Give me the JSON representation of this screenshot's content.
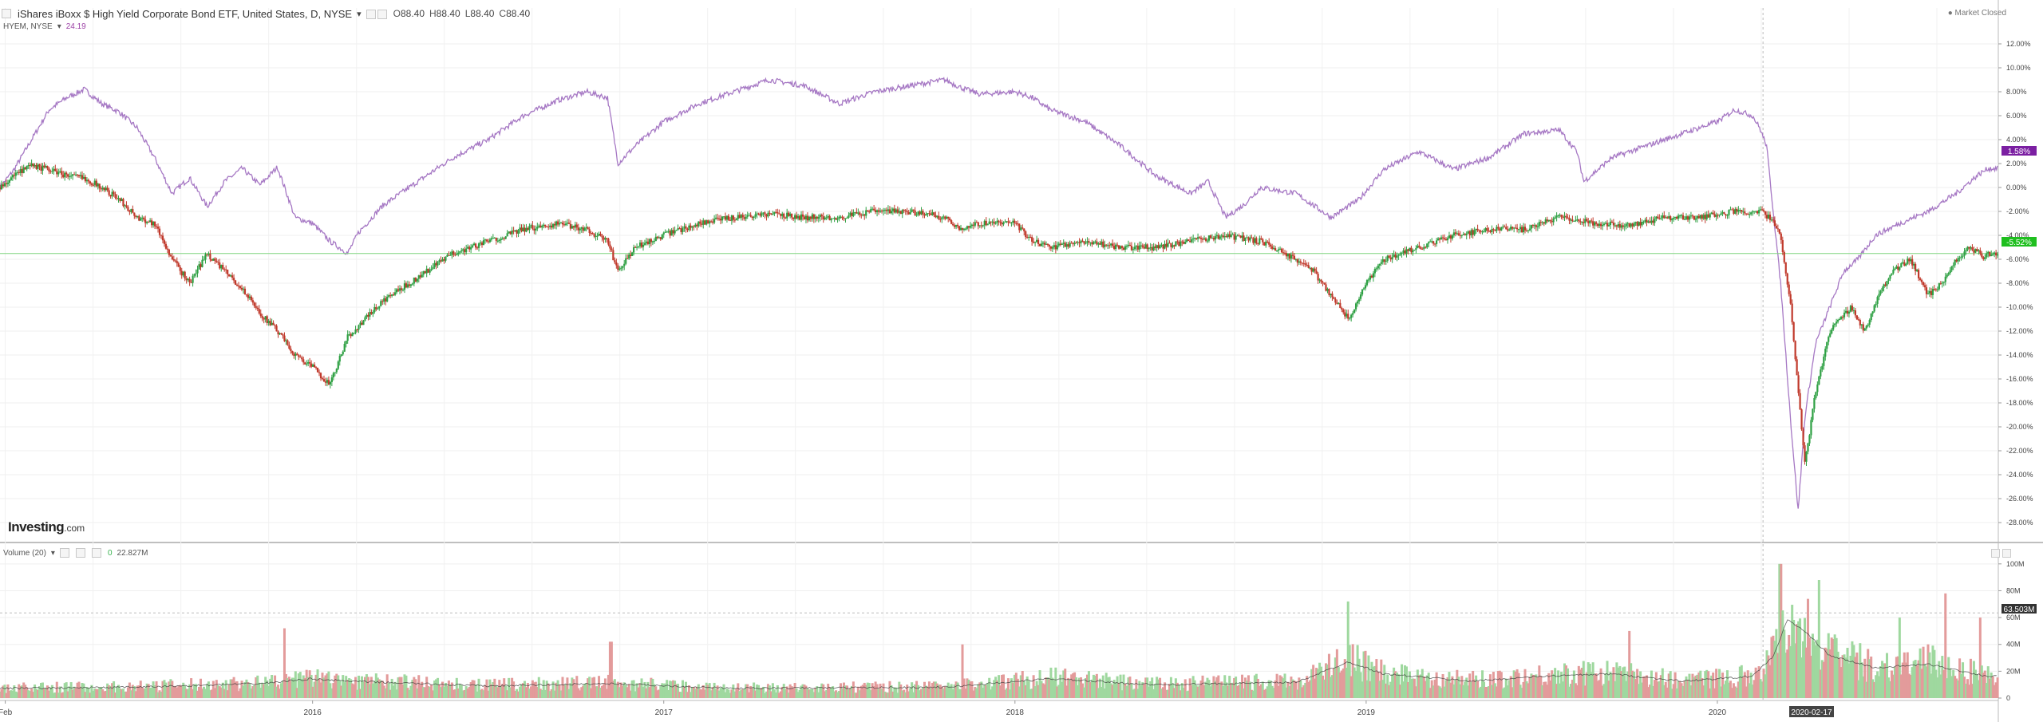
{
  "header": {
    "title": "iShares iBoxx $ High Yield Corporate Bond ETF, United States, D, NYSE",
    "ohlc": [
      {
        "k": "O",
        "v": "88.40"
      },
      {
        "k": "H",
        "v": "88.40"
      },
      {
        "k": "L",
        "v": "88.40"
      },
      {
        "k": "C",
        "v": "88.40"
      }
    ],
    "compare_symbol": "HYEM, NYSE",
    "compare_value": "24.19",
    "market_status": "Market Closed"
  },
  "volume_panel": {
    "label": "Volume (20)",
    "value0": "0",
    "value1": "22.827M",
    "badge": "63.503M"
  },
  "logo": {
    "main": "Investing",
    "suffix": ".com"
  },
  "x_axis_labels": [
    "Feb",
    "2016",
    "2017",
    "2018",
    "2019",
    "2020"
  ],
  "crosshair_date": "2020-02-17",
  "badges": {
    "compare": "1.58%",
    "main": "-5.52%"
  },
  "colors": {
    "compare_line": "#a678c4",
    "up": "#2ea043",
    "down": "#c0392b",
    "vol_up": "#9fd89f",
    "vol_down": "#e39b9b",
    "ma_line": "#333333",
    "badge_compare": "#7b1fa2",
    "badge_main": "#1fbf1f"
  },
  "chart_data": [
    {
      "type": "line",
      "title": "",
      "series": [
        {
          "name": "HYEM, NYSE",
          "points": [
            [
              2015.11,
              0
            ],
            [
              2015.15,
              1.5
            ],
            [
              2015.2,
              4
            ],
            [
              2015.25,
              6.5
            ],
            [
              2015.3,
              7.5
            ],
            [
              2015.35,
              8.2
            ],
            [
              2015.4,
              7
            ],
            [
              2015.45,
              6.3
            ],
            [
              2015.5,
              5
            ],
            [
              2015.55,
              2.5
            ],
            [
              2015.6,
              -0.5
            ],
            [
              2015.65,
              0.8
            ],
            [
              2015.7,
              -1.6
            ],
            [
              2015.75,
              0.5
            ],
            [
              2015.8,
              1.6
            ],
            [
              2015.85,
              0.2
            ],
            [
              2015.9,
              1.7
            ],
            [
              2015.95,
              -2.5
            ],
            [
              2016.0,
              -3
            ],
            [
              2016.05,
              -4.5
            ],
            [
              2016.1,
              -5.5
            ],
            [
              2016.13,
              -3.8
            ],
            [
              2016.2,
              -1.5
            ],
            [
              2016.3,
              0.5
            ],
            [
              2016.4,
              2.5
            ],
            [
              2016.5,
              4
            ],
            [
              2016.6,
              6
            ],
            [
              2016.7,
              7.3
            ],
            [
              2016.78,
              8
            ],
            [
              2016.84,
              7.5
            ],
            [
              2016.87,
              2
            ],
            [
              2016.92,
              3.5
            ],
            [
              2017.0,
              5.5
            ],
            [
              2017.1,
              7
            ],
            [
              2017.2,
              8
            ],
            [
              2017.3,
              9
            ],
            [
              2017.4,
              8.5
            ],
            [
              2017.5,
              7
            ],
            [
              2017.6,
              8
            ],
            [
              2017.7,
              8.5
            ],
            [
              2017.8,
              9
            ],
            [
              2017.85,
              8.3
            ],
            [
              2017.9,
              7.8
            ],
            [
              2018.0,
              8
            ],
            [
              2018.05,
              7.5
            ],
            [
              2018.1,
              6.5
            ],
            [
              2018.2,
              5.5
            ],
            [
              2018.3,
              3.5
            ],
            [
              2018.4,
              1
            ],
            [
              2018.5,
              -0.5
            ],
            [
              2018.55,
              0.5
            ],
            [
              2018.6,
              -2.5
            ],
            [
              2018.65,
              -1.5
            ],
            [
              2018.7,
              0
            ],
            [
              2018.8,
              -0.5
            ],
            [
              2018.85,
              -1.5
            ],
            [
              2018.9,
              -2.5
            ],
            [
              2018.98,
              -1
            ],
            [
              2019.05,
              1.5
            ],
            [
              2019.15,
              3
            ],
            [
              2019.25,
              1.5
            ],
            [
              2019.35,
              2.5
            ],
            [
              2019.45,
              4.5
            ],
            [
              2019.55,
              4.8
            ],
            [
              2019.6,
              3
            ],
            [
              2019.62,
              0.5
            ],
            [
              2019.7,
              2.5
            ],
            [
              2019.8,
              3.5
            ],
            [
              2019.9,
              4.5
            ],
            [
              2020.0,
              5.5
            ],
            [
              2020.05,
              6.5
            ],
            [
              2020.1,
              6
            ],
            [
              2020.12,
              5
            ],
            [
              2020.14,
              3.5
            ],
            [
              2020.18,
              -8
            ],
            [
              2020.21,
              -20
            ],
            [
              2020.23,
              -27
            ],
            [
              2020.25,
              -19
            ],
            [
              2020.28,
              -13
            ],
            [
              2020.32,
              -10
            ],
            [
              2020.36,
              -7
            ],
            [
              2020.4,
              -6
            ],
            [
              2020.45,
              -4
            ],
            [
              2020.52,
              -3
            ],
            [
              2020.6,
              -2
            ],
            [
              2020.68,
              -0.5
            ],
            [
              2020.74,
              1
            ],
            [
              2020.77,
              1.58
            ]
          ]
        },
        {
          "name": "iShares iBoxx $ High Yield Corporate Bond ETF",
          "points": [
            [
              2015.11,
              0
            ],
            [
              2015.15,
              1
            ],
            [
              2015.2,
              1.8
            ],
            [
              2015.25,
              1.5
            ],
            [
              2015.3,
              1
            ],
            [
              2015.35,
              0.8
            ],
            [
              2015.4,
              0
            ],
            [
              2015.45,
              -1
            ],
            [
              2015.5,
              -2.5
            ],
            [
              2015.55,
              -3
            ],
            [
              2015.6,
              -6
            ],
            [
              2015.65,
              -8
            ],
            [
              2015.7,
              -5.5
            ],
            [
              2015.75,
              -7
            ],
            [
              2015.8,
              -8.5
            ],
            [
              2015.85,
              -10.5
            ],
            [
              2015.9,
              -12
            ],
            [
              2015.95,
              -14
            ],
            [
              2016.0,
              -15
            ],
            [
              2016.05,
              -16.5
            ],
            [
              2016.1,
              -12.5
            ],
            [
              2016.15,
              -11
            ],
            [
              2016.2,
              -9.5
            ],
            [
              2016.3,
              -7.5
            ],
            [
              2016.4,
              -5.5
            ],
            [
              2016.5,
              -4.5
            ],
            [
              2016.6,
              -3.5
            ],
            [
              2016.7,
              -3
            ],
            [
              2016.78,
              -3.5
            ],
            [
              2016.84,
              -4.5
            ],
            [
              2016.87,
              -7
            ],
            [
              2016.92,
              -5
            ],
            [
              2017.0,
              -4
            ],
            [
              2017.1,
              -3
            ],
            [
              2017.2,
              -2.5
            ],
            [
              2017.3,
              -2.2
            ],
            [
              2017.4,
              -2.5
            ],
            [
              2017.5,
              -2.5
            ],
            [
              2017.6,
              -2
            ],
            [
              2017.7,
              -2
            ],
            [
              2017.8,
              -2.5
            ],
            [
              2017.85,
              -3.5
            ],
            [
              2017.9,
              -3
            ],
            [
              2018.0,
              -3
            ],
            [
              2018.05,
              -4.5
            ],
            [
              2018.1,
              -5
            ],
            [
              2018.2,
              -4.5
            ],
            [
              2018.3,
              -5
            ],
            [
              2018.4,
              -5
            ],
            [
              2018.5,
              -4.5
            ],
            [
              2018.6,
              -4
            ],
            [
              2018.7,
              -4.5
            ],
            [
              2018.8,
              -6
            ],
            [
              2018.85,
              -7
            ],
            [
              2018.9,
              -9
            ],
            [
              2018.95,
              -11
            ],
            [
              2019.0,
              -8
            ],
            [
              2019.05,
              -6
            ],
            [
              2019.15,
              -5
            ],
            [
              2019.25,
              -4
            ],
            [
              2019.35,
              -3.5
            ],
            [
              2019.45,
              -3.5
            ],
            [
              2019.55,
              -2.5
            ],
            [
              2019.65,
              -3
            ],
            [
              2019.75,
              -3.2
            ],
            [
              2019.85,
              -2.5
            ],
            [
              2019.95,
              -2.5
            ],
            [
              2020.05,
              -2
            ],
            [
              2020.12,
              -2
            ],
            [
              2020.15,
              -2.5
            ],
            [
              2020.18,
              -4
            ],
            [
              2020.21,
              -10
            ],
            [
              2020.23,
              -17
            ],
            [
              2020.25,
              -23
            ],
            [
              2020.28,
              -17
            ],
            [
              2020.32,
              -12
            ],
            [
              2020.38,
              -10
            ],
            [
              2020.42,
              -12
            ],
            [
              2020.46,
              -9
            ],
            [
              2020.5,
              -7
            ],
            [
              2020.55,
              -6
            ],
            [
              2020.6,
              -9
            ],
            [
              2020.64,
              -8
            ],
            [
              2020.68,
              -6
            ],
            [
              2020.72,
              -5
            ],
            [
              2020.76,
              -5.8
            ],
            [
              2020.77,
              -5.52
            ]
          ]
        }
      ],
      "y_ticks": [
        "12.00%",
        "10.00%",
        "8.00%",
        "6.00%",
        "4.00%",
        "2.00%",
        "0.00%",
        "-2.00%",
        "-4.00%",
        "-6.00%",
        "-8.00%",
        "-10.00%",
        "-12.00%",
        "-14.00%",
        "-16.00%",
        "-18.00%",
        "-20.00%",
        "-22.00%",
        "-24.00%",
        "-26.00%",
        "-28.00%"
      ],
      "ylim": [
        -29,
        13
      ],
      "xlim": [
        2015.11,
        2020.8
      ],
      "horizontal_line": -5.52,
      "grid": true
    },
    {
      "type": "bar",
      "title": "",
      "y_ticks": [
        "100M",
        "80M",
        "60M",
        "40M",
        "20M",
        "0"
      ],
      "ylim": [
        0,
        110
      ],
      "volume_profile": [
        [
          2015.11,
          8
        ],
        [
          2015.5,
          9
        ],
        [
          2015.85,
          12
        ],
        [
          2016.0,
          16
        ],
        [
          2016.1,
          14
        ],
        [
          2016.5,
          10
        ],
        [
          2016.85,
          12
        ],
        [
          2017.2,
          8
        ],
        [
          2017.8,
          9
        ],
        [
          2018.1,
          16
        ],
        [
          2018.4,
          11
        ],
        [
          2018.8,
          13
        ],
        [
          2018.95,
          30
        ],
        [
          2019.05,
          20
        ],
        [
          2019.3,
          14
        ],
        [
          2019.5,
          18
        ],
        [
          2019.7,
          20
        ],
        [
          2019.9,
          14
        ],
        [
          2020.1,
          18
        ],
        [
          2020.16,
          35
        ],
        [
          2020.2,
          65
        ],
        [
          2020.25,
          55
        ],
        [
          2020.32,
          35
        ],
        [
          2020.45,
          25
        ],
        [
          2020.6,
          28
        ],
        [
          2020.77,
          18
        ]
      ],
      "spikes": [
        [
          2015.92,
          52
        ],
        [
          2016.85,
          42
        ],
        [
          2017.85,
          40
        ],
        [
          2018.95,
          72
        ],
        [
          2019.75,
          50
        ],
        [
          2020.18,
          100
        ],
        [
          2020.29,
          88
        ],
        [
          2020.52,
          60
        ],
        [
          2020.65,
          78
        ],
        [
          2020.75,
          60
        ]
      ]
    }
  ]
}
